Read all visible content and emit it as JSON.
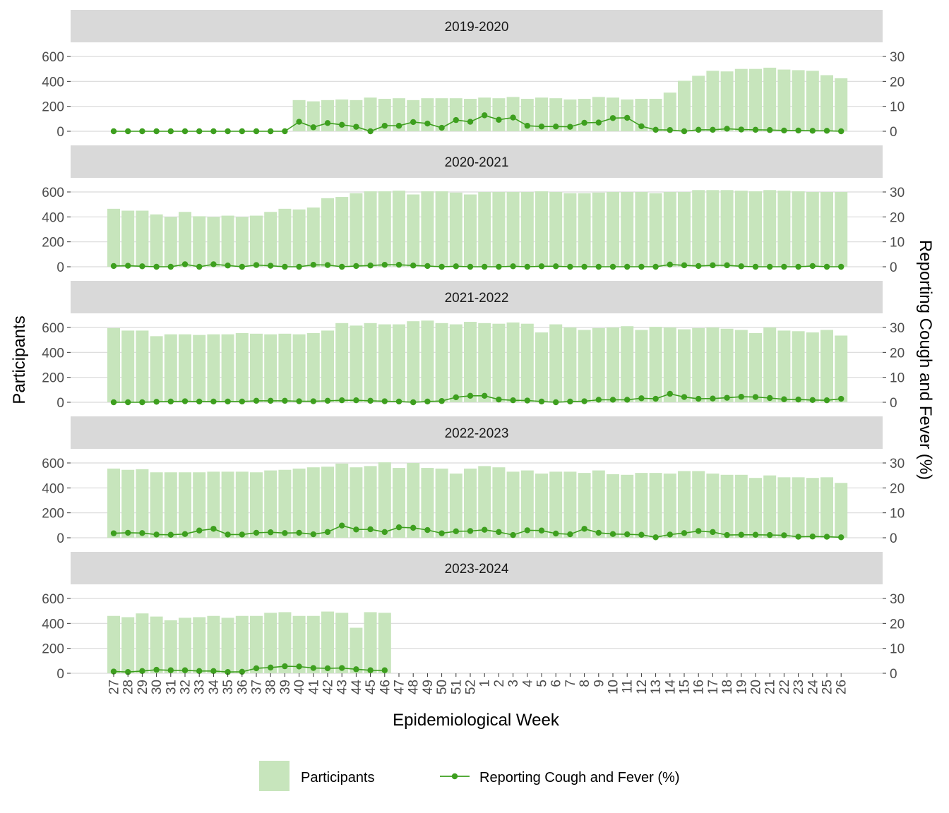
{
  "chart_data": {
    "type": "bar",
    "xlabel": "Epidemiological Week",
    "ylabel_left": "Participants",
    "ylabel_right": "Reporting Cough and Fever (%)",
    "ylim_left": [
      0,
      600
    ],
    "yticks_left": [
      0,
      200,
      400,
      600
    ],
    "ylim_right": [
      0,
      30
    ],
    "yticks_right": [
      0,
      10,
      20,
      30
    ],
    "grid": true,
    "legend_position": "bottom",
    "colors": {
      "bar": "#c7e5bc",
      "line": "#3d9f1e",
      "strip": "#d9d9d9",
      "grid": "#d9d9d9"
    },
    "weeks": [
      "27",
      "28",
      "29",
      "30",
      "31",
      "32",
      "33",
      "34",
      "35",
      "36",
      "37",
      "38",
      "39",
      "40",
      "41",
      "42",
      "43",
      "44",
      "45",
      "46",
      "47",
      "48",
      "49",
      "50",
      "51",
      "52",
      "1",
      "2",
      "3",
      "4",
      "5",
      "6",
      "7",
      "8",
      "9",
      "10",
      "11",
      "12",
      "13",
      "14",
      "15",
      "16",
      "17",
      "18",
      "19",
      "20",
      "21",
      "22",
      "23",
      "24",
      "25",
      "26"
    ],
    "legend": [
      {
        "name": "Participants",
        "kind": "bar"
      },
      {
        "name": "Reporting Cough and Fever (%)",
        "kind": "line"
      }
    ],
    "panels": [
      {
        "label": "2019-2020",
        "participants": [
          null,
          null,
          null,
          null,
          null,
          null,
          null,
          null,
          null,
          null,
          null,
          null,
          null,
          250,
          240,
          250,
          255,
          250,
          270,
          260,
          265,
          250,
          265,
          265,
          265,
          260,
          270,
          265,
          275,
          260,
          270,
          265,
          255,
          260,
          275,
          270,
          255,
          260,
          260,
          310,
          405,
          445,
          485,
          480,
          500,
          500,
          510,
          495,
          490,
          485,
          450,
          425
        ],
        "cough_fever": [
          0,
          0,
          0,
          0,
          0,
          0,
          0,
          0,
          0,
          0,
          0,
          0,
          0,
          3.8,
          1.6,
          3.3,
          2.6,
          1.8,
          0,
          2.2,
          2.2,
          3.7,
          3.1,
          1.4,
          4.5,
          3.8,
          6.4,
          4.6,
          5.5,
          2.2,
          1.9,
          1.9,
          1.8,
          3.4,
          3.5,
          5.3,
          5.4,
          2.0,
          0.6,
          0.5,
          0,
          0.6,
          0.6,
          1.0,
          0.7,
          0.6,
          0.5,
          0.3,
          0.3,
          0.2,
          0.2,
          0
        ]
      },
      {
        "label": "2020-2021",
        "participants": [
          465,
          450,
          450,
          420,
          400,
          440,
          405,
          400,
          410,
          400,
          410,
          440,
          465,
          460,
          475,
          550,
          560,
          590,
          605,
          605,
          610,
          580,
          605,
          605,
          595,
          580,
          600,
          600,
          600,
          600,
          605,
          600,
          590,
          590,
          595,
          600,
          600,
          600,
          590,
          600,
          600,
          615,
          615,
          615,
          610,
          605,
          615,
          610,
          605,
          600,
          600,
          600
        ],
        "cough_fever": [
          0.3,
          0.4,
          0.2,
          0,
          0,
          1.0,
          0,
          1.0,
          0.5,
          0,
          0.7,
          0.4,
          0,
          0,
          0.8,
          0.7,
          0,
          0.3,
          0.5,
          0.8,
          0.8,
          0.5,
          0.3,
          0,
          0.2,
          0,
          0,
          0,
          0.2,
          0,
          0.2,
          0.2,
          0,
          0,
          0,
          0,
          0,
          0,
          0,
          0.9,
          0.6,
          0.3,
          0.6,
          0.6,
          0.2,
          0,
          0,
          0,
          0,
          0.3,
          0,
          0
        ]
      },
      {
        "label": "2021-2022",
        "participants": [
          595,
          575,
          575,
          530,
          545,
          545,
          540,
          545,
          545,
          555,
          550,
          545,
          550,
          545,
          555,
          575,
          635,
          615,
          635,
          625,
          625,
          650,
          655,
          635,
          625,
          645,
          635,
          630,
          640,
          630,
          560,
          625,
          600,
          580,
          595,
          600,
          610,
          580,
          605,
          600,
          585,
          595,
          600,
          590,
          580,
          555,
          600,
          575,
          570,
          560,
          580,
          535
        ],
        "cough_fever": [
          0,
          0,
          0,
          0.2,
          0.3,
          0.4,
          0.3,
          0.3,
          0.3,
          0.3,
          0.6,
          0.6,
          0.6,
          0.4,
          0.4,
          0.6,
          0.8,
          0.8,
          0.6,
          0.4,
          0.3,
          0,
          0.3,
          0.5,
          2.0,
          2.6,
          2.6,
          1.1,
          0.8,
          0.7,
          0.3,
          0,
          0.3,
          0.4,
          1.0,
          1.0,
          1.0,
          1.6,
          1.4,
          3.4,
          2.1,
          1.4,
          1.5,
          1.8,
          2.2,
          2.1,
          1.7,
          1.2,
          1.1,
          0.9,
          0.8,
          1.4
        ]
      },
      {
        "label": "2022-2023",
        "participants": [
          555,
          545,
          550,
          525,
          525,
          525,
          525,
          530,
          530,
          530,
          525,
          540,
          545,
          555,
          565,
          570,
          595,
          565,
          575,
          605,
          560,
          600,
          560,
          555,
          515,
          555,
          575,
          565,
          530,
          540,
          515,
          530,
          530,
          520,
          540,
          510,
          505,
          520,
          520,
          515,
          535,
          535,
          515,
          505,
          505,
          480,
          500,
          485,
          485,
          480,
          485,
          440
        ],
        "cough_fever": [
          1.8,
          2.0,
          1.9,
          1.3,
          1.2,
          1.5,
          2.9,
          3.6,
          1.3,
          1.3,
          2.0,
          2.2,
          1.9,
          2.0,
          1.4,
          2.3,
          4.9,
          3.3,
          3.4,
          2.3,
          4.2,
          4.0,
          3.1,
          1.8,
          2.6,
          2.7,
          3.2,
          2.3,
          1.1,
          3.0,
          2.9,
          1.7,
          1.4,
          3.6,
          2.0,
          1.5,
          1.4,
          1.2,
          0.2,
          1.3,
          1.9,
          2.7,
          2.3,
          1.1,
          1.2,
          1.2,
          1.1,
          1.0,
          0.4,
          0.5,
          0.4,
          0.2
        ]
      },
      {
        "label": "2023-2024",
        "participants": [
          460,
          450,
          480,
          455,
          425,
          445,
          450,
          460,
          445,
          460,
          460,
          485,
          490,
          460,
          460,
          495,
          485,
          365,
          490,
          485,
          null,
          null,
          null,
          null,
          null,
          null,
          null,
          null,
          null,
          null,
          null,
          null,
          null,
          null,
          null,
          null,
          null,
          null,
          null,
          null,
          null,
          null,
          null,
          null,
          null,
          null,
          null,
          null,
          null,
          null,
          null,
          null
        ],
        "cough_fever": [
          0.7,
          0.5,
          0.9,
          1.4,
          1.2,
          1.2,
          0.9,
          0.9,
          0.5,
          0.6,
          2.0,
          2.3,
          2.8,
          2.7,
          2.1,
          2.0,
          2.1,
          1.6,
          1.2,
          1.2,
          null,
          null,
          null,
          null,
          null,
          null,
          null,
          null,
          null,
          null,
          null,
          null,
          null,
          null,
          null,
          null,
          null,
          null,
          null,
          null,
          null,
          null,
          null,
          null,
          null,
          null,
          null,
          null,
          null,
          null,
          null,
          null
        ]
      }
    ]
  }
}
